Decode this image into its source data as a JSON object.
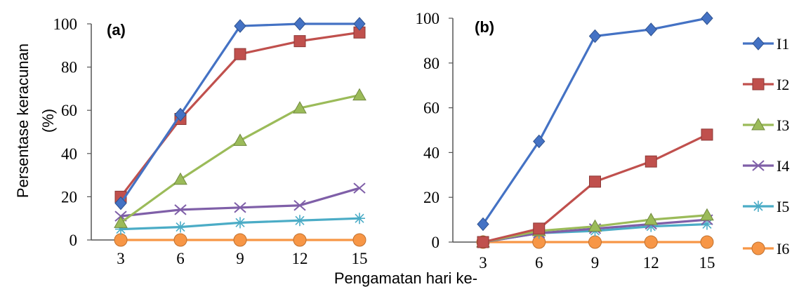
{
  "chart_data": {
    "ylabel": [
      "Persentase keracunan",
      "(%)"
    ],
    "xlabel": "Pengamatan hari ke-",
    "legend_placement": "right",
    "legend": [
      {
        "name": "I1",
        "color": "#4472C4",
        "marker": "diamond"
      },
      {
        "name": "I2",
        "color": "#C0504D",
        "marker": "square"
      },
      {
        "name": "I3",
        "color": "#9BBB59",
        "marker": "triangle"
      },
      {
        "name": "I4",
        "color": "#7F5FA8",
        "marker": "x"
      },
      {
        "name": "I5",
        "color": "#4BACC6",
        "marker": "star"
      },
      {
        "name": "I6",
        "color": "#F79646",
        "marker": "circle"
      }
    ],
    "panels": [
      {
        "label": "(a)",
        "type": "line",
        "x": [
          3,
          6,
          9,
          12,
          15
        ],
        "ylim": [
          0,
          100
        ],
        "yticks": [
          0,
          20,
          40,
          60,
          80,
          100
        ],
        "series": [
          {
            "name": "I1",
            "values": [
              17,
              58,
              99,
              100,
              100
            ]
          },
          {
            "name": "I2",
            "values": [
              20,
              56,
              86,
              92,
              96
            ]
          },
          {
            "name": "I3",
            "values": [
              8,
              28,
              46,
              61,
              67
            ]
          },
          {
            "name": "I4",
            "values": [
              11,
              14,
              15,
              16,
              24
            ]
          },
          {
            "name": "I5",
            "values": [
              5,
              6,
              8,
              9,
              10
            ]
          },
          {
            "name": "I6",
            "values": [
              0,
              0,
              0,
              0,
              0
            ]
          }
        ]
      },
      {
        "label": "(b)",
        "type": "line",
        "x": [
          3,
          6,
          9,
          12,
          15
        ],
        "ylim": [
          0,
          100
        ],
        "yticks": [
          0,
          20,
          40,
          60,
          80,
          100
        ],
        "series": [
          {
            "name": "I1",
            "values": [
              8,
              45,
              92,
              95,
              100
            ]
          },
          {
            "name": "I2",
            "values": [
              0,
              6,
              27,
              36,
              48
            ]
          },
          {
            "name": "I3",
            "values": [
              0,
              5,
              7,
              10,
              12
            ]
          },
          {
            "name": "I4",
            "values": [
              0,
              4,
              6,
              8,
              10
            ]
          },
          {
            "name": "I5",
            "values": [
              0,
              4,
              5,
              7,
              8
            ]
          },
          {
            "name": "I6",
            "values": [
              0,
              0,
              0,
              0,
              0
            ]
          }
        ]
      }
    ]
  }
}
